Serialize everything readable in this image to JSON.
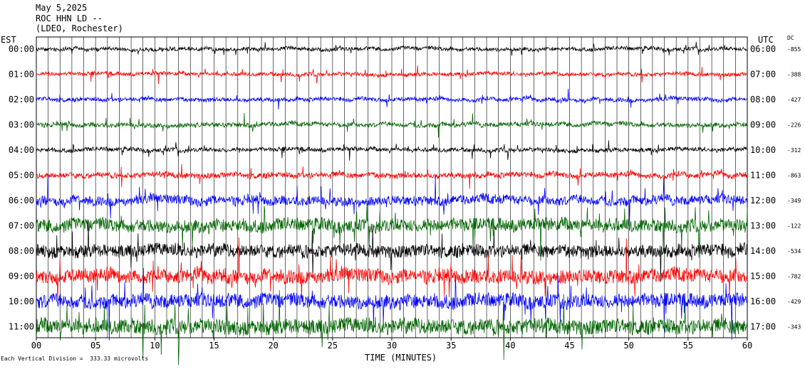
{
  "header": {
    "date": "May 5,2025",
    "station": "ROC HHN LD --",
    "network": "(LDEO, Rochester)"
  },
  "labels": {
    "est": "EST",
    "utc": "UTC",
    "dc": "DC",
    "xlabel": "TIME (MINUTES)",
    "scale_note": "Each Vertical Division =  333.33 microvolts"
  },
  "chart_data": {
    "type": "line",
    "title": "ROC HHN LD --",
    "xlabel": "TIME (MINUTES)",
    "xlim": [
      0,
      60
    ],
    "x_ticks": [
      "00",
      "05",
      "10",
      "15",
      "20",
      "25",
      "30",
      "35",
      "40",
      "45",
      "50",
      "55",
      "60"
    ],
    "grid": true,
    "trace_colors": [
      "#000000",
      "#ff0000",
      "#0000ff",
      "#006400"
    ],
    "rows": [
      {
        "est": "00:00",
        "utc": "06:00",
        "dc": "-855",
        "amplitude": 1.0
      },
      {
        "est": "01:00",
        "utc": "07:00",
        "dc": "-388",
        "amplitude": 1.0
      },
      {
        "est": "02:00",
        "utc": "08:00",
        "dc": "-427",
        "amplitude": 1.1
      },
      {
        "est": "03:00",
        "utc": "09:00",
        "dc": "-226",
        "amplitude": 1.2
      },
      {
        "est": "04:00",
        "utc": "10:00",
        "dc": "-312",
        "amplitude": 1.1
      },
      {
        "est": "05:00",
        "utc": "11:00",
        "dc": "-863",
        "amplitude": 1.5
      },
      {
        "est": "06:00",
        "utc": "12:00",
        "dc": "-349",
        "amplitude": 2.5
      },
      {
        "est": "07:00",
        "utc": "13:00",
        "dc": "-122",
        "amplitude": 3.5
      },
      {
        "est": "08:00",
        "utc": "14:00",
        "dc": "-534",
        "amplitude": 3.5
      },
      {
        "est": "09:00",
        "utc": "15:00",
        "dc": "-782",
        "amplitude": 3.8
      },
      {
        "est": "10:00",
        "utc": "16:00",
        "dc": "-429",
        "amplitude": 3.8
      },
      {
        "est": "11:00",
        "utc": "17:00",
        "dc": "-343",
        "amplitude": 4.2
      }
    ]
  }
}
